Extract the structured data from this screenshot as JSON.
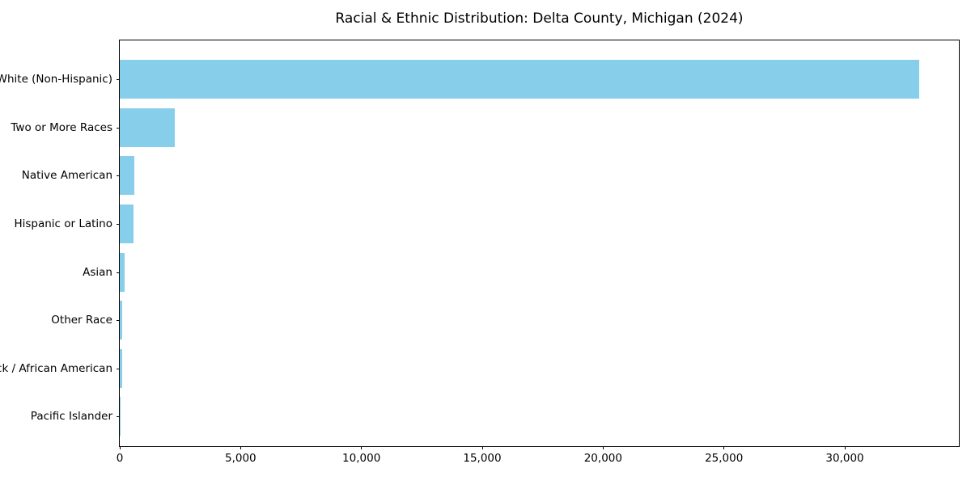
{
  "chart_data": {
    "type": "bar",
    "orientation": "horizontal",
    "title": "Racial & Ethnic Distribution: Delta County, Michigan (2024)",
    "xlabel": "",
    "ylabel": "",
    "categories": [
      "White (Non-Hispanic)",
      "Two or More Races",
      "Native American",
      "Hispanic or Latino",
      "Asian",
      "Other Race",
      "Black / African American",
      "Pacific Islander"
    ],
    "values": [
      33080,
      2280,
      590,
      585,
      200,
      110,
      100,
      15
    ],
    "xlim": [
      0,
      34720
    ],
    "xticks": {
      "values": [
        0,
        5000,
        10000,
        15000,
        20000,
        25000,
        30000
      ],
      "labels": [
        "0",
        "5,000",
        "10,000",
        "15,000",
        "20,000",
        "25,000",
        "30,000"
      ]
    },
    "bar_color": "#87CEEB",
    "spine_color": "#000000",
    "grid": false,
    "legend": null
  }
}
